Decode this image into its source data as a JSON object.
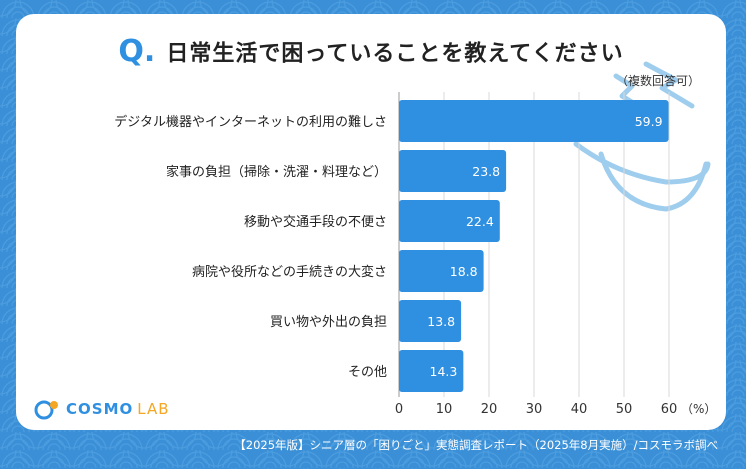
{
  "header": {
    "q_mark": "Q.",
    "title": "日常生活で困っていることを教えてください",
    "subtitle": "（複数回答可）"
  },
  "brand": {
    "logo_main": "COSMO",
    "logo_sub": "LAB"
  },
  "footer": {
    "source": "【2025年版】シニア層の「困りごと」実態調査レポート（2025年8月実施）/コスモラボ調べ"
  },
  "colors": {
    "background": "#3a8fd6",
    "bar": "#2f8fe0",
    "accent": "#f5a623"
  },
  "chart_data": {
    "type": "bar",
    "orientation": "horizontal",
    "categories": [
      "デジタル機器やインターネットの利用の難しさ",
      "家事の負担（掃除・洗濯・料理など）",
      "移動や交通手段の不便さ",
      "病院や役所などの手続きの大変さ",
      "買い物や外出の負担",
      "その他"
    ],
    "values": [
      59.9,
      23.8,
      22.4,
      18.8,
      13.8,
      14.3
    ],
    "value_labels": [
      "59.9",
      "23.8",
      "22.4",
      "18.8",
      "13.8",
      "14.3"
    ],
    "xlim": [
      0,
      60
    ],
    "xticks": [
      "0",
      "10",
      "20",
      "30",
      "40",
      "50",
      "60"
    ],
    "xunit": "（%）",
    "grid": true
  }
}
